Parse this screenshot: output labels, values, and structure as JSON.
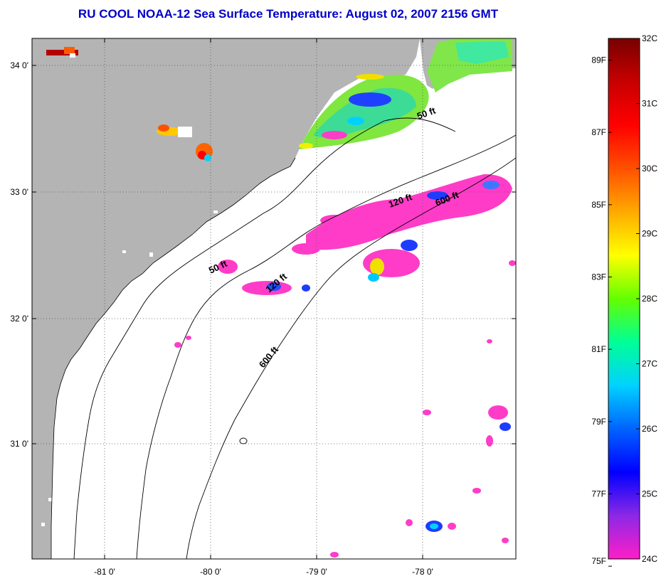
{
  "title": "RU COOL  NOAA-12  Sea Surface Temperature:  August 02, 2007 2156 GMT",
  "map": {
    "lon_ticks": [
      "-81 0'",
      "-80 0'",
      "-79 0'",
      "-78 0'"
    ],
    "lat_ticks": [
      "34 0'",
      "33 0'",
      "32 0'",
      "31 0'"
    ],
    "depth_labels": [
      "50 ft",
      "120 ft",
      "600 ft",
      "50 ft",
      "120 ft",
      "600 ft"
    ],
    "colors": {
      "land": "#b4b4b4",
      "ocean": "#ffffff",
      "warm_pink": "#ff3cc8",
      "green": "#50e650",
      "cyan": "#00f0ff",
      "blue": "#1e3cff",
      "yellow": "#f0f000",
      "red": "#ff1e00"
    }
  },
  "colorbar": {
    "f_labels": [
      "89F",
      "87F",
      "85F",
      "83F",
      "81F",
      "79F",
      "77F",
      "75F"
    ],
    "c_labels": [
      "32C",
      "31C",
      "30C",
      "29C",
      "28C",
      "27C",
      "26C",
      "25C",
      "24C"
    ],
    "gradient_stops": [
      "#ff1ec8",
      "#8c28e6",
      "#0000ff",
      "#0064ff",
      "#00d2ff",
      "#00ff96",
      "#64ff00",
      "#ffff00",
      "#ffaa00",
      "#ff5000",
      "#ff0000",
      "#c80000",
      "#780000"
    ]
  }
}
